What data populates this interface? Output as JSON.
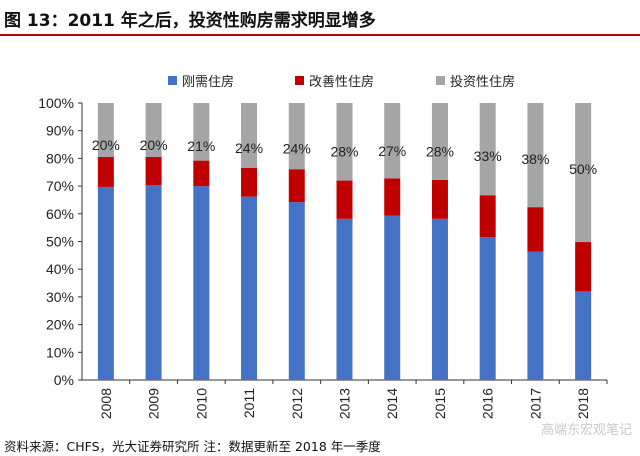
{
  "title": "图 13：2011 年之后，投资性购房需求明显增多",
  "footer": "资料来源：CHFS，光大证券研究所  注：数据更新至 2018 年一季度",
  "watermark": "高端东宏观笔记",
  "chart_data": {
    "type": "bar",
    "stacked": true,
    "categories": [
      "2008",
      "2009",
      "2010",
      "2011",
      "2012",
      "2013",
      "2014",
      "2015",
      "2016",
      "2017",
      "2018"
    ],
    "series": [
      {
        "name": "刚需住房",
        "color": "#4472c4",
        "values": [
          69.7,
          70.4,
          70.0,
          66.2,
          64.2,
          58.2,
          59.4,
          58.2,
          51.6,
          46.4,
          32.0
        ]
      },
      {
        "name": "改善性住房",
        "color": "#c00000",
        "values": [
          10.8,
          10.1,
          9.2,
          10.4,
          11.9,
          13.8,
          13.4,
          14.0,
          15.1,
          16.0,
          17.8
        ]
      },
      {
        "name": "投资性住房",
        "color": "#a5a5a5",
        "values": [
          19.5,
          19.5,
          20.8,
          23.4,
          23.9,
          28.0,
          27.2,
          27.8,
          33.3,
          37.6,
          50.2
        ]
      }
    ],
    "data_labels": [
      "20%",
      "20%",
      "21%",
      "24%",
      "24%",
      "28%",
      "27%",
      "28%",
      "33%",
      "38%",
      "50%"
    ],
    "yticks": [
      "0%",
      "10%",
      "20%",
      "30%",
      "40%",
      "50%",
      "60%",
      "70%",
      "80%",
      "90%",
      "100%"
    ],
    "ylim": [
      0,
      100
    ],
    "legend_position": "top",
    "grid": false
  }
}
